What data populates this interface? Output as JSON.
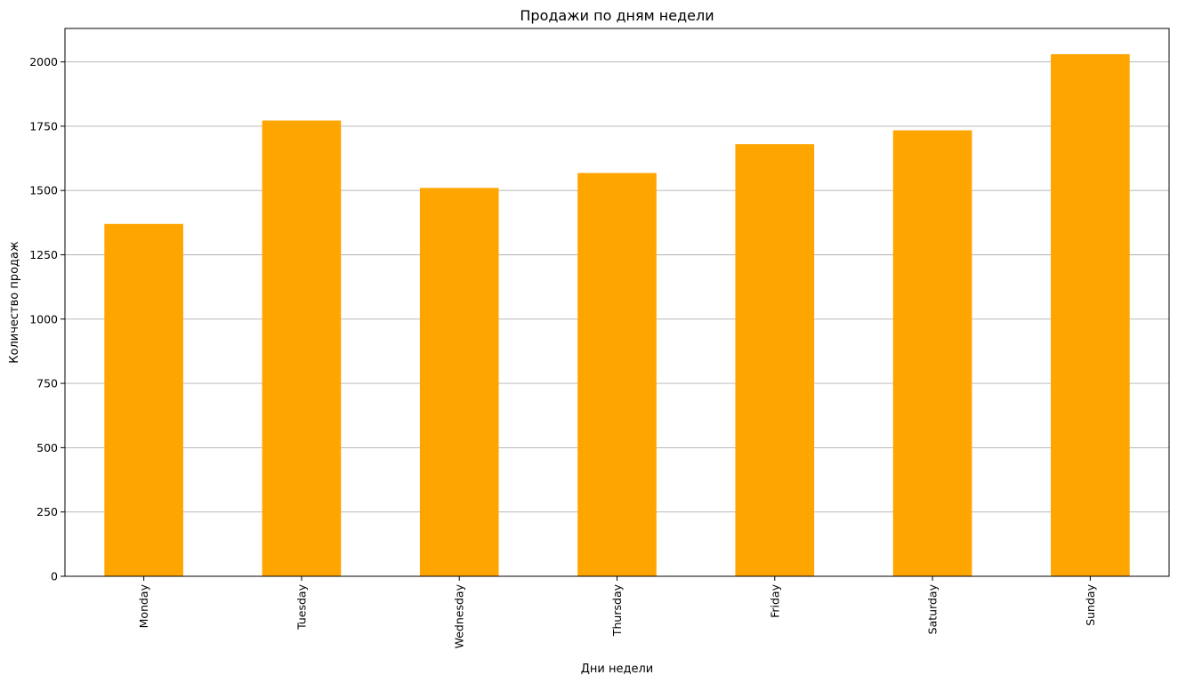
{
  "chart_data": {
    "type": "bar",
    "title": "Продажи по дням недели",
    "xlabel": "Дни недели",
    "ylabel": "Количество продаж",
    "categories": [
      "Monday",
      "Tuesday",
      "Wednesday",
      "Thursday",
      "Friday",
      "Saturday",
      "Sunday"
    ],
    "values": [
      1370,
      1772,
      1510,
      1568,
      1680,
      1734,
      2030
    ],
    "ylim": [
      0,
      2130
    ],
    "yticks": [
      0,
      250,
      500,
      750,
      1000,
      1250,
      1500,
      1750,
      2000
    ],
    "grid": "y",
    "legend": "none",
    "bar_color": "#ffa500",
    "grid_color": "#b0b0b0",
    "x_tick_rotation": "vertical"
  }
}
